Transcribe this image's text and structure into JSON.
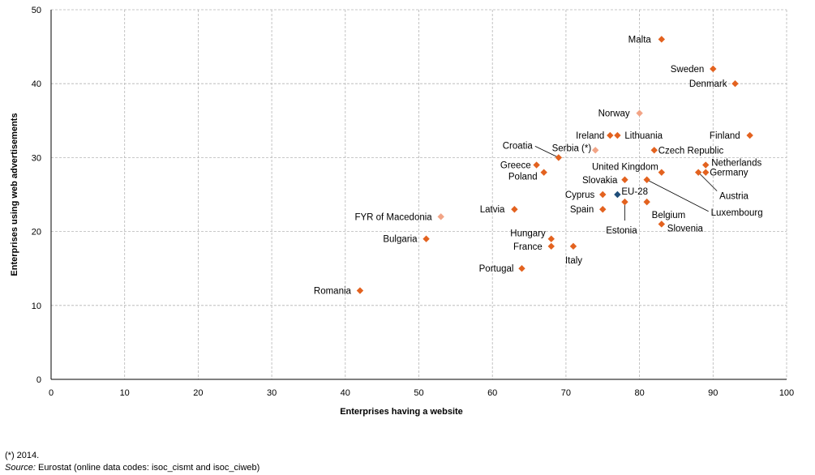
{
  "chart_data": {
    "type": "scatter",
    "title": "",
    "xlabel": "Enterprises having  a website",
    "ylabel": "Enterprises using  web advertisements",
    "xlim": [
      0,
      100
    ],
    "ylim": [
      0,
      50
    ],
    "xticks": [
      0,
      10,
      20,
      30,
      40,
      50,
      60,
      70,
      80,
      90,
      100
    ],
    "yticks": [
      0,
      10,
      20,
      30,
      40,
      50
    ],
    "grid": true,
    "colors": {
      "member": "#e3621f",
      "non_member": "#f2a486",
      "aggregate": "#1f4e79",
      "grid": "#b5b5b5",
      "axis": "#000000"
    },
    "points": [
      {
        "label": "Malta",
        "x": 83,
        "y": 46,
        "group": "member"
      },
      {
        "label": "Sweden",
        "x": 90,
        "y": 42,
        "group": "member"
      },
      {
        "label": "Denmark",
        "x": 93,
        "y": 40,
        "group": "member"
      },
      {
        "label": "Norway",
        "x": 80,
        "y": 36,
        "group": "non_member"
      },
      {
        "label": "Finland",
        "x": 95,
        "y": 33,
        "group": "member"
      },
      {
        "label": "Ireland",
        "x": 76,
        "y": 33,
        "group": "member"
      },
      {
        "label": "Lithuania",
        "x": 77,
        "y": 33,
        "group": "member"
      },
      {
        "label": "Croatia",
        "x": 69,
        "y": 30,
        "group": "member"
      },
      {
        "label": "Serbia (*)",
        "x": 74,
        "y": 31,
        "group": "non_member"
      },
      {
        "label": "Czech Republic",
        "x": 82,
        "y": 31,
        "group": "member"
      },
      {
        "label": "Netherlands",
        "x": 89,
        "y": 29,
        "group": "member"
      },
      {
        "label": "Greece",
        "x": 66,
        "y": 29,
        "group": "member"
      },
      {
        "label": "Poland",
        "x": 67,
        "y": 28,
        "group": "member"
      },
      {
        "label": "United Kingdom",
        "x": 83,
        "y": 28,
        "group": "member"
      },
      {
        "label": "Germany",
        "x": 89,
        "y": 28,
        "group": "member"
      },
      {
        "label": "Austria",
        "x": 88,
        "y": 28,
        "group": "member"
      },
      {
        "label": "Slovakia",
        "x": 78,
        "y": 27,
        "group": "member"
      },
      {
        "label": "Luxembourg",
        "x": 81,
        "y": 27,
        "group": "member"
      },
      {
        "label": "Cyprus",
        "x": 75,
        "y": 25,
        "group": "member"
      },
      {
        "label": "EU-28",
        "x": 77,
        "y": 25,
        "group": "aggregate"
      },
      {
        "label": "Belgium",
        "x": 81,
        "y": 24,
        "group": "member"
      },
      {
        "label": "Estonia",
        "x": 78,
        "y": 24,
        "group": "member"
      },
      {
        "label": "Spain",
        "x": 75,
        "y": 23,
        "group": "member"
      },
      {
        "label": "Latvia",
        "x": 63,
        "y": 23,
        "group": "member"
      },
      {
        "label": "FYR of Macedonia",
        "x": 53,
        "y": 22,
        "group": "non_member"
      },
      {
        "label": "Slovenia",
        "x": 83,
        "y": 21,
        "group": "member"
      },
      {
        "label": "Bulgaria",
        "x": 51,
        "y": 19,
        "group": "member"
      },
      {
        "label": "Hungary",
        "x": 68,
        "y": 19,
        "group": "member"
      },
      {
        "label": "France",
        "x": 68,
        "y": 18,
        "group": "member"
      },
      {
        "label": "Italy",
        "x": 71,
        "y": 18,
        "group": "member"
      },
      {
        "label": "Portugal",
        "x": 64,
        "y": 15,
        "group": "member"
      },
      {
        "label": "Romania",
        "x": 42,
        "y": 12,
        "group": "member"
      }
    ]
  },
  "footnotes": {
    "note": "(*) 2014.",
    "source_label": "Source:",
    "source_text": " Eurostat (online data codes: isoc_cismt and isoc_ciweb)"
  }
}
